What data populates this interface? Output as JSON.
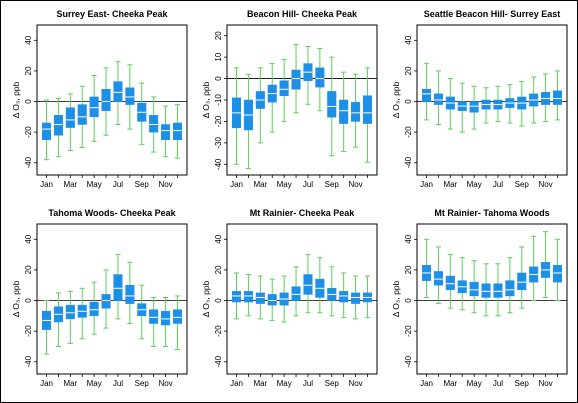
{
  "chart_data": [
    {
      "type": "box",
      "title": "Surrey East- Cheeka Peak",
      "ylabel": "Δ O₃, ppb",
      "ylim": [
        -48,
        50
      ],
      "yticks": [
        -40,
        -20,
        0,
        20,
        40
      ],
      "x_tick_labels": [
        "Jan",
        "Mar",
        "May",
        "Jul",
        "Sep",
        "Nov"
      ],
      "reference_line": 0,
      "categories": [
        "Jan",
        "Feb",
        "Mar",
        "Apr",
        "May",
        "Jun",
        "Jul",
        "Aug",
        "Sep",
        "Oct",
        "Nov",
        "Dec"
      ],
      "boxes": [
        {
          "whislo": -38,
          "q1": -25,
          "med": -18,
          "q3": -14,
          "whishi": 1
        },
        {
          "whislo": -36,
          "q1": -22,
          "med": -15,
          "q3": -9,
          "whishi": 2
        },
        {
          "whislo": -32,
          "q1": -17,
          "med": -12,
          "q3": -4,
          "whishi": 5
        },
        {
          "whislo": -30,
          "q1": -15,
          "med": -10,
          "q3": -2,
          "whishi": 10
        },
        {
          "whislo": -26,
          "q1": -10,
          "med": -4,
          "q3": 3,
          "whishi": 17
        },
        {
          "whislo": -22,
          "q1": -6,
          "med": 0,
          "q3": 8,
          "whishi": 22
        },
        {
          "whislo": -15,
          "q1": 0,
          "med": 6,
          "q3": 13,
          "whishi": 26
        },
        {
          "whislo": -18,
          "q1": -2,
          "med": 3,
          "q3": 9,
          "whishi": 24
        },
        {
          "whislo": -28,
          "q1": -13,
          "med": -7,
          "q3": -1,
          "whishi": 12
        },
        {
          "whislo": -33,
          "q1": -20,
          "med": -15,
          "q3": -9,
          "whishi": 3
        },
        {
          "whislo": -36,
          "q1": -25,
          "med": -19,
          "q3": -15,
          "whishi": -3
        },
        {
          "whislo": -37,
          "q1": -25,
          "med": -19,
          "q3": -14,
          "whishi": -2
        }
      ]
    },
    {
      "type": "box",
      "title": "Beacon Hill- Cheeka Peak",
      "ylabel": "Δ O₃, ppb",
      "ylim": [
        -45,
        25
      ],
      "yticks": [
        -40,
        -30,
        -20,
        -10,
        0,
        10,
        20
      ],
      "x_tick_labels": [
        "Jan",
        "Mar",
        "May",
        "Jul",
        "Sep",
        "Nov"
      ],
      "reference_line": 0,
      "categories": [
        "Jan",
        "Feb",
        "Mar",
        "Apr",
        "May",
        "Jun",
        "Jul",
        "Aug",
        "Sep",
        "Oct",
        "Nov",
        "Dec"
      ],
      "boxes": [
        {
          "whislo": -40,
          "q1": -23,
          "med": -16,
          "q3": -9,
          "whishi": 5
        },
        {
          "whislo": -42,
          "q1": -24,
          "med": -17,
          "q3": -10,
          "whishi": 2
        },
        {
          "whislo": -30,
          "q1": -14,
          "med": -10,
          "q3": -6,
          "whishi": 5
        },
        {
          "whislo": -25,
          "q1": -11,
          "med": -7,
          "q3": -3,
          "whishi": 7
        },
        {
          "whislo": -20,
          "q1": -8,
          "med": -5,
          "q3": -1,
          "whishi": 9
        },
        {
          "whislo": -16,
          "q1": -5,
          "med": 0,
          "q3": 4,
          "whishi": 16
        },
        {
          "whislo": -12,
          "q1": -1,
          "med": 3,
          "q3": 7,
          "whishi": 15
        },
        {
          "whislo": -15,
          "q1": -4,
          "med": 0,
          "q3": 5,
          "whishi": 14
        },
        {
          "whislo": -36,
          "q1": -18,
          "med": -13,
          "q3": -6,
          "whishi": 10
        },
        {
          "whislo": -34,
          "q1": -21,
          "med": -15,
          "q3": -10,
          "whishi": 3
        },
        {
          "whislo": -32,
          "q1": -20,
          "med": -16,
          "q3": -11,
          "whishi": 2
        },
        {
          "whislo": -39,
          "q1": -21,
          "med": -16,
          "q3": -8,
          "whishi": 5
        }
      ]
    },
    {
      "type": "box",
      "title": "Seattle Beacon Hill- Surrey East",
      "ylabel": "Δ O₃, ppb",
      "ylim": [
        -48,
        50
      ],
      "yticks": [
        -40,
        -20,
        0,
        20,
        40
      ],
      "x_tick_labels": [
        "Jan",
        "Mar",
        "May",
        "Jul",
        "Sep",
        "Nov"
      ],
      "reference_line": 0,
      "categories": [
        "Jan",
        "Feb",
        "Mar",
        "Apr",
        "May",
        "Jun",
        "Jul",
        "Aug",
        "Sep",
        "Oct",
        "Nov",
        "Dec"
      ],
      "boxes": [
        {
          "whislo": -12,
          "q1": 0,
          "med": 5,
          "q3": 8,
          "whishi": 25
        },
        {
          "whislo": -15,
          "q1": -2,
          "med": 1,
          "q3": 5,
          "whishi": 20
        },
        {
          "whislo": -18,
          "q1": -5,
          "med": -1,
          "q3": 3,
          "whishi": 15
        },
        {
          "whislo": -20,
          "q1": -6,
          "med": -3,
          "q3": 0,
          "whishi": 12
        },
        {
          "whislo": -18,
          "q1": -7,
          "med": -3,
          "q3": 0,
          "whishi": 10
        },
        {
          "whislo": -14,
          "q1": -5,
          "med": -2,
          "q3": 1,
          "whishi": 9
        },
        {
          "whislo": -13,
          "q1": -5,
          "med": -2,
          "q3": 1,
          "whishi": 10
        },
        {
          "whislo": -14,
          "q1": -4,
          "med": -1,
          "q3": 2,
          "whishi": 11
        },
        {
          "whislo": -16,
          "q1": -5,
          "med": -1,
          "q3": 3,
          "whishi": 13
        },
        {
          "whislo": -14,
          "q1": -3,
          "med": 1,
          "q3": 5,
          "whishi": 16
        },
        {
          "whislo": -13,
          "q1": -2,
          "med": 2,
          "q3": 6,
          "whishi": 18
        },
        {
          "whislo": -12,
          "q1": -2,
          "med": 2,
          "q3": 7,
          "whishi": 20
        }
      ]
    },
    {
      "type": "box",
      "title": "Tahoma Woods- Cheeka Peak",
      "ylabel": "Δ O₃, ppb",
      "ylim": [
        -48,
        50
      ],
      "yticks": [
        -40,
        -20,
        0,
        20,
        40
      ],
      "x_tick_labels": [
        "Jan",
        "Mar",
        "May",
        "Jul",
        "Sep",
        "Nov"
      ],
      "reference_line": 0,
      "categories": [
        "Jan",
        "Feb",
        "Mar",
        "Apr",
        "May",
        "Jun",
        "Jul",
        "Aug",
        "Sep",
        "Oct",
        "Nov",
        "Dec"
      ],
      "boxes": [
        {
          "whislo": -35,
          "q1": -19,
          "med": -13,
          "q3": -7,
          "whishi": 0
        },
        {
          "whislo": -30,
          "q1": -14,
          "med": -9,
          "q3": -4,
          "whishi": 5
        },
        {
          "whislo": -28,
          "q1": -12,
          "med": -8,
          "q3": -3,
          "whishi": 6
        },
        {
          "whislo": -25,
          "q1": -11,
          "med": -7,
          "q3": -3,
          "whishi": 8
        },
        {
          "whislo": -22,
          "q1": -10,
          "med": -6,
          "q3": -1,
          "whishi": 12
        },
        {
          "whislo": -18,
          "q1": -5,
          "med": 0,
          "q3": 4,
          "whishi": 20
        },
        {
          "whislo": -12,
          "q1": 0,
          "med": 8,
          "q3": 17,
          "whishi": 30
        },
        {
          "whislo": -15,
          "q1": -2,
          "med": 3,
          "q3": 10,
          "whishi": 25
        },
        {
          "whislo": -25,
          "q1": -10,
          "med": -6,
          "q3": -2,
          "whishi": 10
        },
        {
          "whislo": -30,
          "q1": -15,
          "med": -11,
          "q3": -6,
          "whishi": 2
        },
        {
          "whislo": -30,
          "q1": -16,
          "med": -12,
          "q3": -7,
          "whishi": 2
        },
        {
          "whislo": -32,
          "q1": -15,
          "med": -11,
          "q3": -6,
          "whishi": 3
        }
      ]
    },
    {
      "type": "box",
      "title": "Mt Rainier- Cheeka Peak",
      "ylabel": "Δ O₃, ppb",
      "ylim": [
        -48,
        50
      ],
      "yticks": [
        -40,
        -20,
        0,
        20,
        40
      ],
      "x_tick_labels": [
        "Jan",
        "Mar",
        "May",
        "Jul",
        "Sep",
        "Nov"
      ],
      "reference_line": 0,
      "categories": [
        "Jan",
        "Feb",
        "Mar",
        "Apr",
        "May",
        "Jun",
        "Jul",
        "Aug",
        "Sep",
        "Oct",
        "Nov",
        "Dec"
      ],
      "boxes": [
        {
          "whislo": -12,
          "q1": -1,
          "med": 3,
          "q3": 6,
          "whishi": 18
        },
        {
          "whislo": -10,
          "q1": -1,
          "med": 3,
          "q3": 6,
          "whishi": 17
        },
        {
          "whislo": -12,
          "q1": -2,
          "med": 2,
          "q3": 5,
          "whishi": 16
        },
        {
          "whislo": -13,
          "q1": -3,
          "med": 0,
          "q3": 4,
          "whishi": 14
        },
        {
          "whislo": -14,
          "q1": -3,
          "med": 1,
          "q3": 5,
          "whishi": 16
        },
        {
          "whislo": -10,
          "q1": 0,
          "med": 4,
          "q3": 9,
          "whishi": 22
        },
        {
          "whislo": -8,
          "q1": 4,
          "med": 10,
          "q3": 17,
          "whishi": 30
        },
        {
          "whislo": -8,
          "q1": 2,
          "med": 8,
          "q3": 14,
          "whishi": 28
        },
        {
          "whislo": -10,
          "q1": 0,
          "med": 4,
          "q3": 8,
          "whishi": 22
        },
        {
          "whislo": -11,
          "q1": -1,
          "med": 3,
          "q3": 6,
          "whishi": 18
        },
        {
          "whislo": -12,
          "q1": -2,
          "med": 2,
          "q3": 5,
          "whishi": 16
        },
        {
          "whislo": -11,
          "q1": -1,
          "med": 2,
          "q3": 5,
          "whishi": 16
        }
      ]
    },
    {
      "type": "box",
      "title": "Mt Rainier- Tahoma Woods",
      "ylabel": "Δ O₃, ppb",
      "ylim": [
        -48,
        50
      ],
      "yticks": [
        -40,
        -20,
        0,
        20,
        40
      ],
      "x_tick_labels": [
        "Jan",
        "Mar",
        "May",
        "Jul",
        "Sep",
        "Nov"
      ],
      "reference_line": 0,
      "categories": [
        "Jan",
        "Feb",
        "Mar",
        "Apr",
        "May",
        "Jun",
        "Jul",
        "Aug",
        "Sep",
        "Oct",
        "Nov",
        "Dec"
      ],
      "boxes": [
        {
          "whislo": 2,
          "q1": 13,
          "med": 18,
          "q3": 23,
          "whishi": 40
        },
        {
          "whislo": -2,
          "q1": 10,
          "med": 14,
          "q3": 19,
          "whishi": 35
        },
        {
          "whislo": -5,
          "q1": 7,
          "med": 11,
          "q3": 16,
          "whishi": 30
        },
        {
          "whislo": -6,
          "q1": 5,
          "med": 9,
          "q3": 13,
          "whishi": 28
        },
        {
          "whislo": -8,
          "q1": 3,
          "med": 7,
          "q3": 12,
          "whishi": 26
        },
        {
          "whislo": -10,
          "q1": 2,
          "med": 6,
          "q3": 11,
          "whishi": 24
        },
        {
          "whislo": -10,
          "q1": 2,
          "med": 6,
          "q3": 11,
          "whishi": 24
        },
        {
          "whislo": -8,
          "q1": 3,
          "med": 7,
          "q3": 13,
          "whishi": 28
        },
        {
          "whislo": -5,
          "q1": 7,
          "med": 12,
          "q3": 18,
          "whishi": 35
        },
        {
          "whislo": 0,
          "q1": 12,
          "med": 17,
          "q3": 22,
          "whishi": 42
        },
        {
          "whislo": 2,
          "q1": 15,
          "med": 20,
          "q3": 25,
          "whishi": 45
        },
        {
          "whislo": 0,
          "q1": 12,
          "med": 18,
          "q3": 23,
          "whishi": 40
        }
      ]
    }
  ],
  "colors": {
    "box_fill": "#1e8fe6",
    "whisker": "#5ccf5c",
    "median": "#ffffff",
    "outlier": "#333333",
    "zero_line": "#000000",
    "axis": "#000000",
    "background": "#ffffff"
  }
}
